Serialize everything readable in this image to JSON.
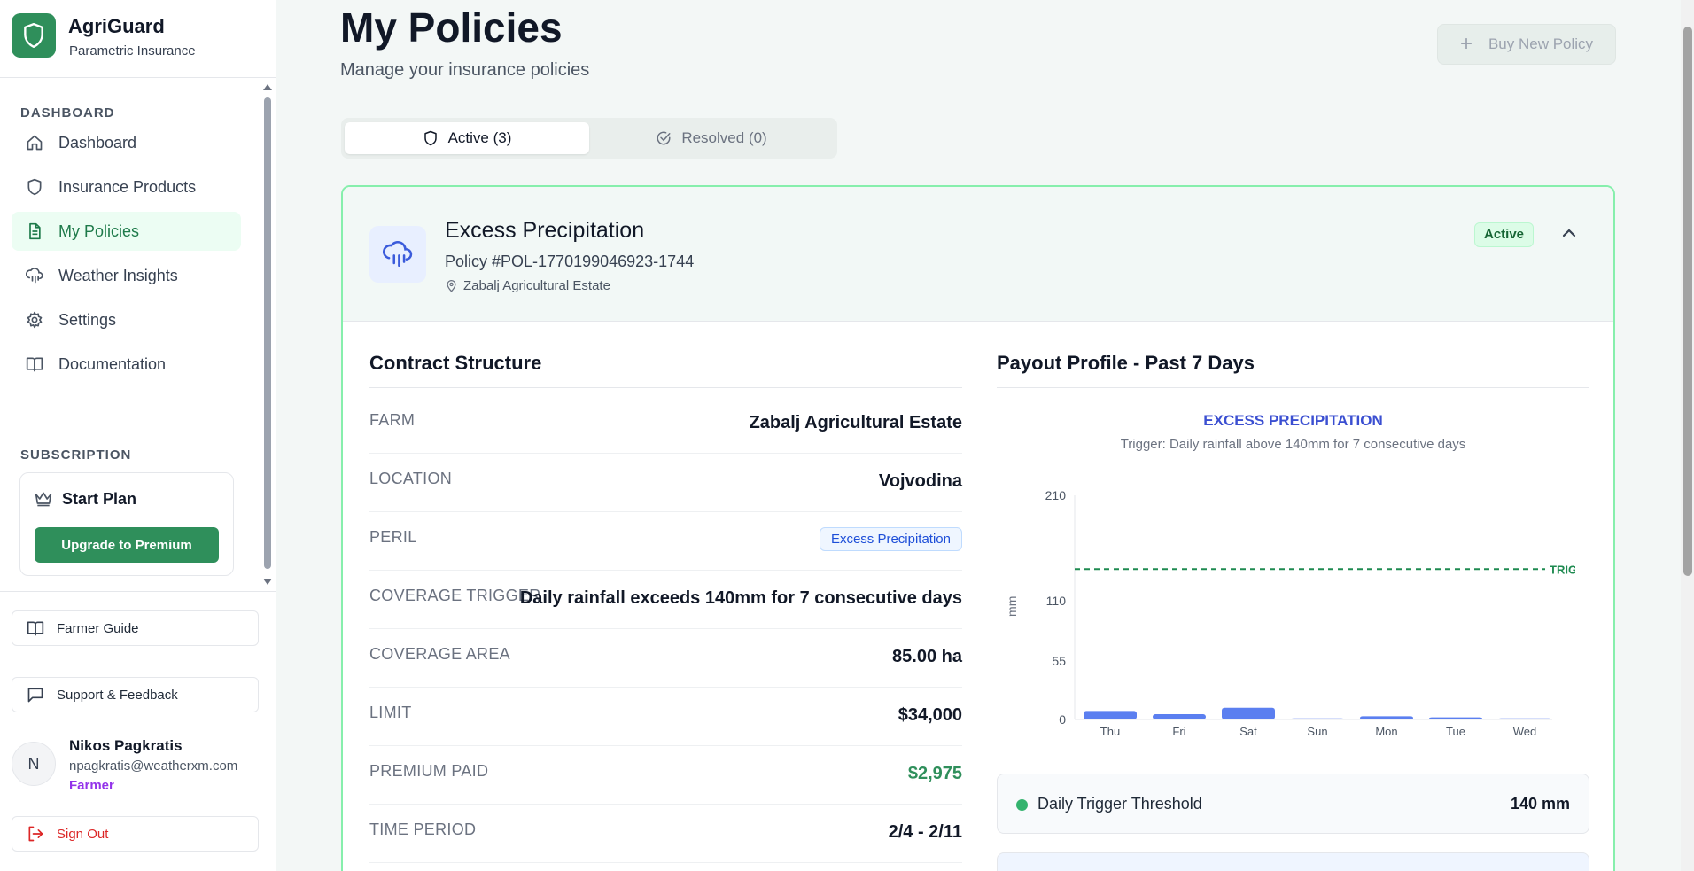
{
  "brand": {
    "name": "AgriGuard",
    "tagline": "Parametric Insurance"
  },
  "sidebar": {
    "dashboard_section": "DASHBOARD",
    "items": [
      {
        "label": "Dashboard",
        "icon": "home-icon"
      },
      {
        "label": "Insurance Products",
        "icon": "shield-icon"
      },
      {
        "label": "My Policies",
        "icon": "file-text-icon",
        "active": true
      },
      {
        "label": "Weather Insights",
        "icon": "cloud-rain-icon"
      },
      {
        "label": "Settings",
        "icon": "gear-icon"
      },
      {
        "label": "Documentation",
        "icon": "book-icon"
      }
    ],
    "subscription_section": "SUBSCRIPTION",
    "plan": {
      "name": "Start Plan",
      "upgrade_label": "Upgrade to Premium"
    },
    "farmer_guide": "Farmer Guide",
    "support": "Support & Feedback",
    "user": {
      "initial": "N",
      "name": "Nikos Pagkratis",
      "email": "npagkratis@weatherxm.com",
      "role": "Farmer"
    },
    "sign_out": "Sign Out"
  },
  "header": {
    "title": "My Policies",
    "subtitle": "Manage your insurance policies",
    "buy_label": "Buy New Policy"
  },
  "tabs": [
    {
      "label": "Active (3)",
      "active": true
    },
    {
      "label": "Resolved (0)",
      "active": false
    }
  ],
  "policy": {
    "name": "Excess Precipitation",
    "number": "Policy #POL-1770199046923-1744",
    "location": "Zabalj Agricultural Estate",
    "status": "Active",
    "contract": {
      "title": "Contract Structure",
      "rows": [
        {
          "label": "FARM",
          "value": "Zabalj Agricultural Estate"
        },
        {
          "label": "LOCATION",
          "value": "Vojvodina"
        },
        {
          "label": "PERIL",
          "value": "Excess Precipitation"
        },
        {
          "label": "COVERAGE TRIGGER",
          "value": "Daily rainfall exceeds 140mm for 7 consecutive days"
        },
        {
          "label": "COVERAGE AREA",
          "value": "85.00 ha"
        },
        {
          "label": "LIMIT",
          "value": "$34,000"
        },
        {
          "label": "PREMIUM PAID",
          "value": "$2,975"
        },
        {
          "label": "TIME PERIOD",
          "value": "2/4 - 2/11"
        }
      ]
    },
    "payout": {
      "title": "Payout Profile - Past 7 Days",
      "threshold_label": "Daily Trigger Threshold",
      "threshold_value": "140 mm"
    }
  },
  "chart_data": {
    "type": "bar",
    "title": "EXCESS PRECIPITATION",
    "subtitle": "Trigger: Daily rainfall above 140mm for 7 consecutive days",
    "ylabel": "mm",
    "yticks": [
      "210",
      "110",
      "55",
      "0"
    ],
    "ylim": [
      0,
      210
    ],
    "categories": [
      "Thu",
      "Fri",
      "Sat",
      "Sun",
      "Mon",
      "Tue",
      "Wed"
    ],
    "values": [
      8,
      5,
      11,
      1,
      3,
      2,
      1
    ],
    "trigger": {
      "value": 140,
      "label": "TRIGGER"
    },
    "colors": {
      "bar": "#5b7ff0",
      "trigger": "#1e8a50"
    }
  }
}
